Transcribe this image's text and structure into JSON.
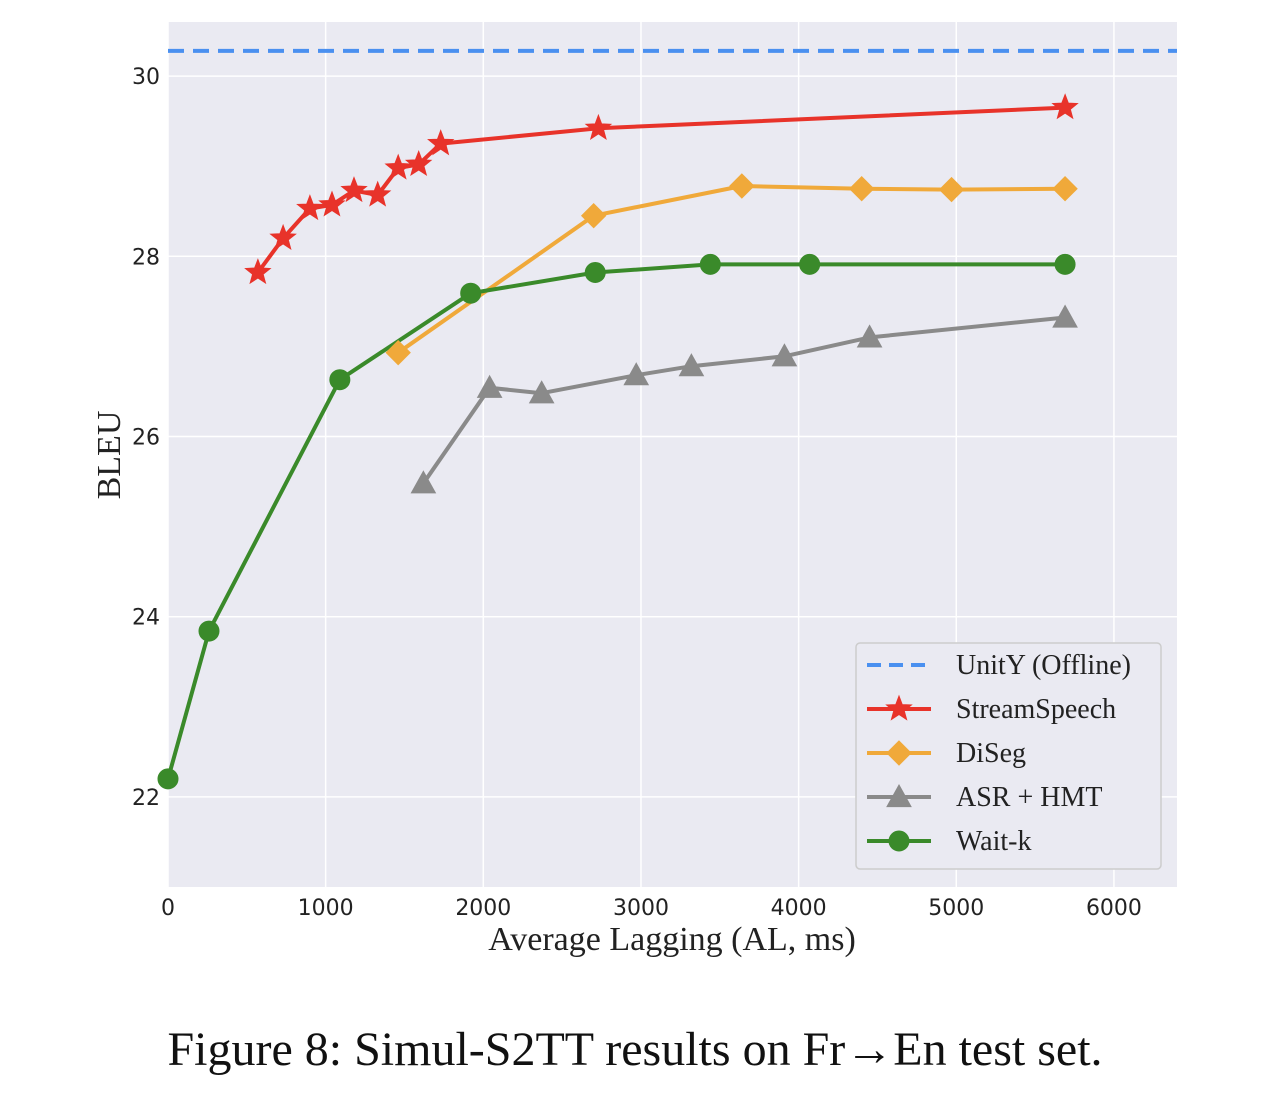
{
  "caption": "Figure 8: Simul-S2TT results on Fr→En test set.",
  "chart_data": {
    "type": "line",
    "title": "",
    "xlabel": "Average Lagging (AL, ms)",
    "ylabel": "BLEU",
    "xlim": [
      0,
      6400
    ],
    "ylim": [
      21,
      30.6
    ],
    "xticks": [
      0,
      1000,
      2000,
      3000,
      4000,
      5000,
      6000
    ],
    "yticks": [
      22,
      24,
      26,
      28,
      30
    ],
    "grid": true,
    "legend_position": "lower-right",
    "colors": {
      "plot_background": "#eaeaf2",
      "grid": "#ffffff"
    },
    "series": [
      {
        "name": "UnitY (Offline)",
        "color": "#4a90f0",
        "style": "dashed",
        "marker": "none",
        "hline": 30.28
      },
      {
        "name": "StreamSpeech",
        "color": "#e8332a",
        "marker": "star",
        "points": [
          [
            570,
            27.82
          ],
          [
            730,
            28.2
          ],
          [
            900,
            28.53
          ],
          [
            1040,
            28.57
          ],
          [
            1180,
            28.73
          ],
          [
            1330,
            28.68
          ],
          [
            1460,
            28.98
          ],
          [
            1590,
            29.02
          ],
          [
            1730,
            29.25
          ],
          [
            2730,
            29.42
          ],
          [
            5690,
            29.65
          ]
        ]
      },
      {
        "name": "DiSeg",
        "color": "#f0a93a",
        "marker": "diamond",
        "points": [
          [
            1460,
            26.93
          ],
          [
            2700,
            28.45
          ],
          [
            3640,
            28.78
          ],
          [
            4400,
            28.75
          ],
          [
            4970,
            28.74
          ],
          [
            5690,
            28.75
          ]
        ]
      },
      {
        "name": "ASR + HMT",
        "color": "#8a8a8a",
        "marker": "triangle",
        "points": [
          [
            1620,
            25.48
          ],
          [
            2040,
            26.54
          ],
          [
            2370,
            26.48
          ],
          [
            2970,
            26.68
          ],
          [
            3320,
            26.78
          ],
          [
            3910,
            26.89
          ],
          [
            4450,
            27.1
          ],
          [
            5690,
            27.32
          ]
        ]
      },
      {
        "name": "Wait-k",
        "color": "#3a8a2a",
        "marker": "circle",
        "points": [
          [
            0,
            22.2
          ],
          [
            260,
            23.84
          ],
          [
            1090,
            26.63
          ],
          [
            1920,
            27.59
          ],
          [
            2710,
            27.82
          ],
          [
            3440,
            27.91
          ],
          [
            4070,
            27.91
          ],
          [
            5690,
            27.91
          ]
        ]
      }
    ]
  }
}
